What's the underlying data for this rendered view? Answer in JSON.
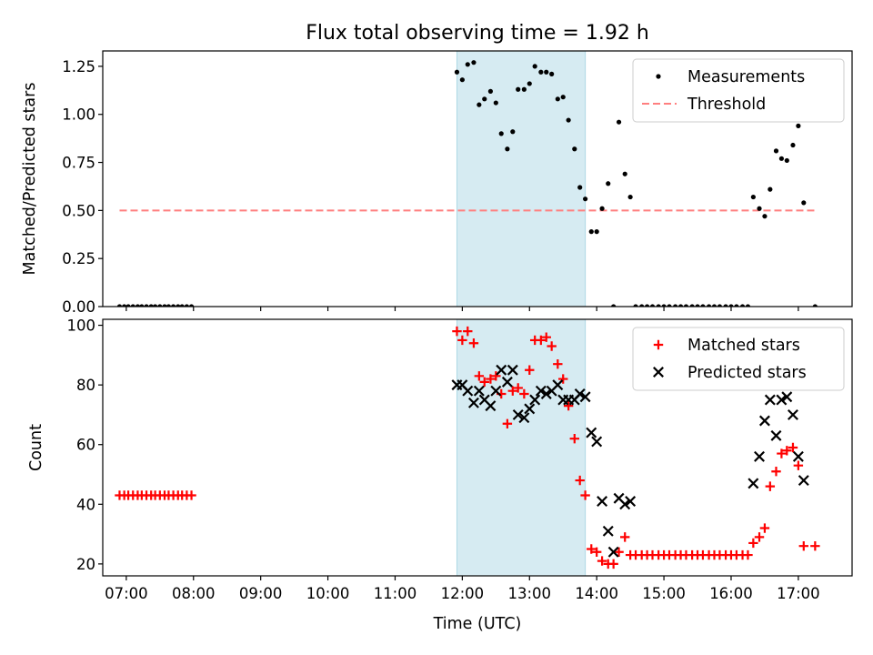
{
  "title": "Flux total observing time = 1.92 h",
  "xlabel": "Time (UTC)",
  "x_tick_labels": [
    "07:00",
    "08:00",
    "09:00",
    "10:00",
    "11:00",
    "12:00",
    "13:00",
    "14:00",
    "15:00",
    "16:00",
    "17:00"
  ],
  "colors": {
    "highlight": "#add8e6",
    "measurements": "#000000",
    "threshold": "#ff7f7f",
    "matched": "#ff0000",
    "predicted": "#000000"
  },
  "chart_data": [
    {
      "type": "scatter",
      "panel": "top",
      "ylabel": "Matched/Predicted stars",
      "xlim": [
        6.65,
        17.8
      ],
      "ylim": [
        0,
        1.33
      ],
      "y_ticks": [
        0,
        0.25,
        0.5,
        0.75,
        1.0,
        1.25
      ],
      "y_tick_labels": [
        "0.00",
        "0.25",
        "0.50",
        "0.75",
        "1.00",
        "1.25"
      ],
      "highlight_span": [
        11.92,
        13.83
      ],
      "legend": {
        "placement": "top-right",
        "entries": [
          "Measurements",
          "Threshold"
        ]
      },
      "threshold": {
        "name": "Threshold",
        "value": 0.5,
        "x_range": [
          6.9,
          17.25
        ]
      },
      "series": [
        {
          "name": "Measurements",
          "marker": "dot",
          "x": [
            6.9,
            6.97,
            7.03,
            7.1,
            7.17,
            7.23,
            7.3,
            7.37,
            7.43,
            7.5,
            7.57,
            7.63,
            7.7,
            7.77,
            7.83,
            7.9,
            7.97,
            11.92,
            12.0,
            12.08,
            12.17,
            12.25,
            12.33,
            12.42,
            12.5,
            12.58,
            12.67,
            12.75,
            12.83,
            12.92,
            13.0,
            13.08,
            13.17,
            13.25,
            13.33,
            13.42,
            13.5,
            13.58,
            13.67,
            13.75,
            13.83,
            13.92,
            14.0,
            14.08,
            14.17,
            14.25,
            14.33,
            14.42,
            14.5,
            14.58,
            14.67,
            14.75,
            14.83,
            14.92,
            15.0,
            15.08,
            15.17,
            15.25,
            15.33,
            15.42,
            15.5,
            15.58,
            15.67,
            15.75,
            15.83,
            15.92,
            16.0,
            16.08,
            16.17,
            16.25,
            16.33,
            16.42,
            16.5,
            16.58,
            16.67,
            16.75,
            16.83,
            16.92,
            17.0,
            17.08,
            17.25
          ],
          "y": [
            0,
            0,
            0,
            0,
            0,
            0,
            0,
            0,
            0,
            0,
            0,
            0,
            0,
            0,
            0,
            0,
            0,
            1.22,
            1.18,
            1.26,
            1.27,
            1.05,
            1.08,
            1.12,
            1.06,
            0.9,
            0.82,
            0.91,
            1.13,
            1.13,
            1.16,
            1.25,
            1.22,
            1.22,
            1.21,
            1.08,
            1.09,
            0.97,
            0.82,
            0.62,
            0.56,
            0.39,
            0.39,
            0.51,
            0.64,
            0.0,
            0.96,
            0.69,
            0.57,
            0,
            0,
            0,
            0,
            0,
            0,
            0,
            0,
            0,
            0,
            0,
            0,
            0,
            0,
            0,
            0,
            0,
            0,
            0,
            0,
            0,
            0.57,
            0.51,
            0.47,
            0.61,
            0.81,
            0.77,
            0.76,
            0.84,
            0.94,
            0.54,
            0
          ]
        }
      ]
    },
    {
      "type": "scatter",
      "panel": "bottom",
      "ylabel": "Count",
      "xlim": [
        6.65,
        17.8
      ],
      "ylim": [
        16,
        102
      ],
      "y_ticks": [
        20,
        40,
        60,
        80,
        100
      ],
      "y_tick_labels": [
        "20",
        "40",
        "60",
        "80",
        "100"
      ],
      "highlight_span": [
        11.92,
        13.83
      ],
      "legend": {
        "placement": "top-right",
        "entries": [
          "Matched stars",
          "Predicted stars"
        ]
      },
      "series": [
        {
          "name": "Matched stars",
          "marker": "plus",
          "x": [
            6.9,
            6.97,
            7.03,
            7.1,
            7.17,
            7.23,
            7.3,
            7.37,
            7.43,
            7.5,
            7.57,
            7.63,
            7.7,
            7.77,
            7.83,
            7.9,
            7.97,
            11.92,
            12.0,
            12.08,
            12.17,
            12.25,
            12.33,
            12.42,
            12.5,
            12.58,
            12.67,
            12.75,
            12.83,
            12.92,
            13.0,
            13.08,
            13.17,
            13.25,
            13.33,
            13.42,
            13.5,
            13.58,
            13.67,
            13.75,
            13.83,
            13.92,
            14.0,
            14.08,
            14.17,
            14.25,
            14.33,
            14.42,
            14.5,
            14.58,
            14.67,
            14.75,
            14.83,
            14.92,
            15.0,
            15.08,
            15.17,
            15.25,
            15.33,
            15.42,
            15.5,
            15.58,
            15.67,
            15.75,
            15.83,
            15.92,
            16.0,
            16.08,
            16.17,
            16.25,
            16.33,
            16.42,
            16.5,
            16.58,
            16.67,
            16.75,
            16.83,
            16.92,
            17.0,
            17.08,
            17.25
          ],
          "y": [
            43,
            43,
            43,
            43,
            43,
            43,
            43,
            43,
            43,
            43,
            43,
            43,
            43,
            43,
            43,
            43,
            43,
            98,
            95,
            98,
            94,
            83,
            81,
            82,
            83,
            77,
            67,
            78,
            79,
            77,
            85,
            95,
            95,
            96,
            93,
            87,
            82,
            73,
            62,
            48,
            43,
            25,
            24,
            21,
            20,
            20,
            24,
            29,
            23,
            23,
            23,
            23,
            23,
            23,
            23,
            23,
            23,
            23,
            23,
            23,
            23,
            23,
            23,
            23,
            23,
            23,
            23,
            23,
            23,
            23,
            27,
            29,
            32,
            46,
            51,
            57,
            58,
            59,
            53,
            26,
            26
          ]
        },
        {
          "name": "Predicted stars",
          "marker": "x",
          "x": [
            11.92,
            12.0,
            12.08,
            12.17,
            12.25,
            12.33,
            12.42,
            12.5,
            12.58,
            12.67,
            12.75,
            12.83,
            12.92,
            13.0,
            13.08,
            13.17,
            13.25,
            13.33,
            13.42,
            13.5,
            13.58,
            13.67,
            13.75,
            13.83,
            13.92,
            14.0,
            14.08,
            14.17,
            14.25,
            14.33,
            14.42,
            14.5,
            16.33,
            16.42,
            16.5,
            16.58,
            16.67,
            16.75,
            16.83,
            16.92,
            17.0,
            17.08
          ],
          "y": [
            80,
            80,
            78,
            74,
            78,
            75,
            73,
            78,
            85,
            81,
            85,
            70,
            69,
            72,
            75,
            78,
            77,
            78,
            80,
            75,
            75,
            75,
            77,
            76,
            64,
            61,
            41,
            31,
            24,
            42,
            40,
            41,
            47,
            56,
            68,
            75,
            63,
            75,
            76,
            70,
            56,
            48
          ]
        }
      ]
    }
  ]
}
